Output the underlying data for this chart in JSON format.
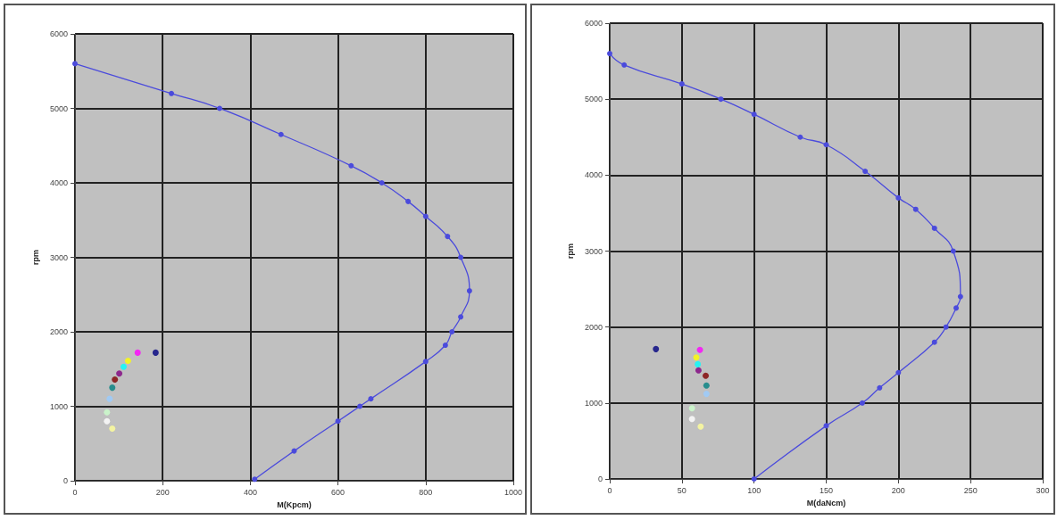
{
  "chart_data": [
    {
      "type": "line",
      "xlabel": "M(Kpcm)",
      "ylabel": "rpm",
      "xlim": [
        0,
        1000
      ],
      "ylim": [
        0,
        6000
      ],
      "xticks": [
        0,
        200,
        400,
        600,
        800,
        1000
      ],
      "yticks": [
        0,
        1000,
        2000,
        3000,
        4000,
        5000,
        6000
      ],
      "grid": true,
      "series": [
        {
          "type": "line",
          "marker": "circle",
          "color": "#4b4bdc",
          "x": [
            0,
            220,
            330,
            470,
            630,
            700,
            760,
            800,
            850,
            880,
            900,
            880,
            860,
            845,
            800,
            675,
            650,
            600,
            500,
            410
          ],
          "values": [
            5600,
            5200,
            5000,
            4650,
            4230,
            4000,
            3750,
            3550,
            3280,
            3000,
            2550,
            2200,
            2000,
            1820,
            1600,
            1100,
            1000,
            800,
            400,
            20
          ]
        },
        {
          "type": "scatter",
          "marker": "circle",
          "x": [
            184,
            143,
            121,
            111,
            101,
            91,
            85,
            79,
            73,
            73,
            85
          ],
          "values": [
            1720,
            1720,
            1610,
            1530,
            1440,
            1360,
            1250,
            1100,
            920,
            800,
            700
          ],
          "colors": [
            "#000080",
            "#ff00ff",
            "#ffff00",
            "#00ffff",
            "#800080",
            "#800000",
            "#008080",
            "#99ccff",
            "#ccffcc",
            "#ffffff",
            "#ffff99"
          ]
        }
      ]
    },
    {
      "type": "line",
      "xlabel": "M(daNcm)",
      "ylabel": "rpm",
      "xlim": [
        0,
        300
      ],
      "ylim": [
        0,
        6000
      ],
      "xticks": [
        0,
        50,
        100,
        150,
        200,
        250,
        300
      ],
      "yticks": [
        0,
        1000,
        2000,
        3000,
        4000,
        5000,
        6000
      ],
      "grid": true,
      "series": [
        {
          "type": "line",
          "marker": "circle",
          "color": "#4b4bdc",
          "x": [
            0,
            10,
            50,
            77,
            100,
            132,
            150,
            177,
            200,
            212,
            225,
            238,
            243,
            240,
            233,
            225,
            200,
            187,
            175,
            150,
            100
          ],
          "values": [
            5600,
            5450,
            5200,
            5000,
            4800,
            4500,
            4400,
            4050,
            3700,
            3550,
            3300,
            3000,
            2400,
            2250,
            2000,
            1800,
            1400,
            1200,
            1000,
            700,
            0
          ]
        },
        {
          "type": "scatter",
          "marker": "circle",
          "x": [
            32,
            62.5,
            60,
            61,
            61.5,
            66.5,
            67,
            67,
            57,
            57,
            63
          ],
          "values": [
            1710,
            1700,
            1600,
            1510,
            1430,
            1360,
            1230,
            1120,
            930,
            790,
            690
          ],
          "colors": [
            "#000080",
            "#ff00ff",
            "#ffff00",
            "#00ffff",
            "#800080",
            "#800000",
            "#008080",
            "#99ccff",
            "#ccffcc",
            "#ffffff",
            "#ffff99"
          ]
        }
      ]
    }
  ]
}
